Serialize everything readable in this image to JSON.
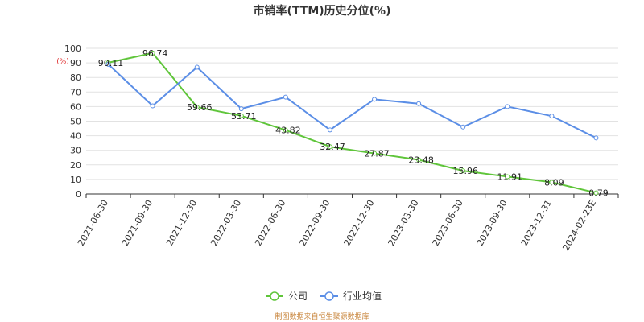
{
  "chart_data": {
    "type": "line",
    "title": "市销率(TTM)历史分位(%)",
    "ylabel": "(%)",
    "ylim": [
      0,
      100
    ],
    "yticks": [
      0,
      10,
      20,
      30,
      40,
      50,
      60,
      70,
      80,
      90,
      100
    ],
    "grid": true,
    "legend_position": "bottom-center",
    "categories": [
      "2021-06-30",
      "2021-09-30",
      "2021-12-30",
      "2022-03-30",
      "2022-06-30",
      "2022-09-30",
      "2022-12-30",
      "2023-03-30",
      "2023-06-30",
      "2023-09-30",
      "2023-12-31",
      "2024-02-23E"
    ],
    "series": [
      {
        "name": "公司",
        "color": "#5fc53a",
        "values": [
          90.11,
          96.74,
          59.66,
          53.71,
          43.82,
          32.47,
          27.87,
          23.48,
          15.96,
          11.91,
          8.09,
          0.79
        ],
        "labels": [
          "90.11",
          "96.74",
          "59.66",
          "53.71",
          "43.82",
          "32.47",
          "27.87",
          "23.48",
          "15.96",
          "11.91",
          "8.09",
          "0.79"
        ],
        "show_labels": true
      },
      {
        "name": "行业均值",
        "color": "#5b8ee6",
        "values": [
          89,
          60.5,
          87,
          58.5,
          66.5,
          44,
          65,
          62,
          46,
          60,
          53.5,
          38.5
        ],
        "show_labels": false
      }
    ],
    "source": "制图数据来自恒生聚源数据库"
  }
}
